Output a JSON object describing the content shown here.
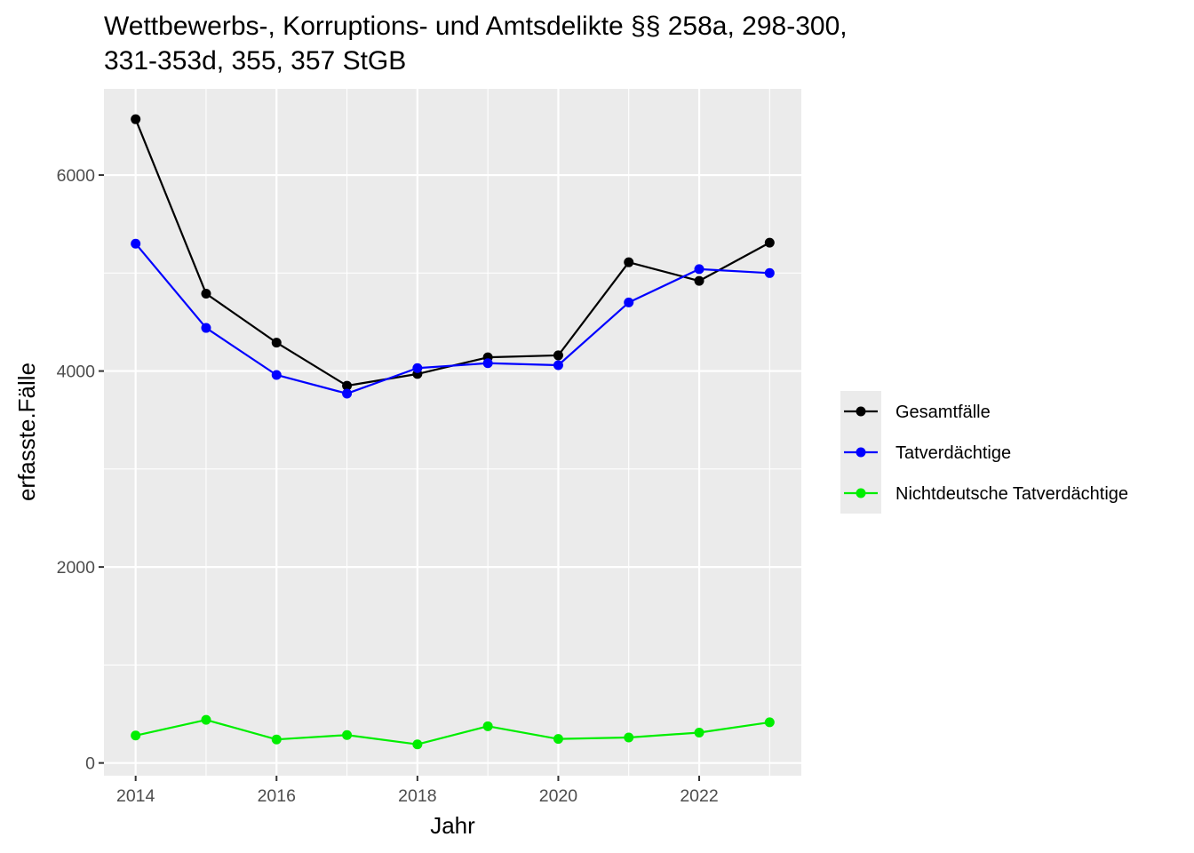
{
  "chart_data": {
    "type": "line",
    "title_lines": [
      "Wettbewerbs-, Korruptions- und Amtsdelikte §§ 258a, 298-300,",
      "331-353d, 355, 357 StGB"
    ],
    "xlabel": "Jahr",
    "ylabel": "erfasste.Fälle",
    "x": [
      2014,
      2015,
      2016,
      2017,
      2018,
      2019,
      2020,
      2021,
      2022,
      2023
    ],
    "xlim": [
      2013.55,
      2023.45
    ],
    "ylim": [
      -130,
      6880
    ],
    "x_ticks": [
      2014,
      2016,
      2018,
      2020,
      2022
    ],
    "x_tick_labels": [
      "2014",
      "2016",
      "2018",
      "2020",
      "2022"
    ],
    "y_ticks": [
      0,
      2000,
      4000,
      6000
    ],
    "y_tick_labels": [
      "0",
      "2000",
      "4000",
      "6000"
    ],
    "grid": true,
    "legend_position": "right",
    "panel_background": "#ebebeb",
    "grid_color": "#ffffff",
    "series": [
      {
        "name": "Gesamtfälle",
        "color": "#000000",
        "values": [
          6570,
          4790,
          4290,
          3850,
          3970,
          4140,
          4160,
          5110,
          4920,
          5310
        ]
      },
      {
        "name": "Tatverdächtige",
        "color": "#0000ff",
        "values": [
          5300,
          4440,
          3960,
          3770,
          4030,
          4080,
          4060,
          4700,
          5040,
          5000
        ]
      },
      {
        "name": "Nichtdeutsche Tatverdächtige",
        "color": "#00ee00",
        "values": [
          280,
          440,
          240,
          285,
          190,
          375,
          245,
          260,
          310,
          415
        ]
      }
    ]
  }
}
